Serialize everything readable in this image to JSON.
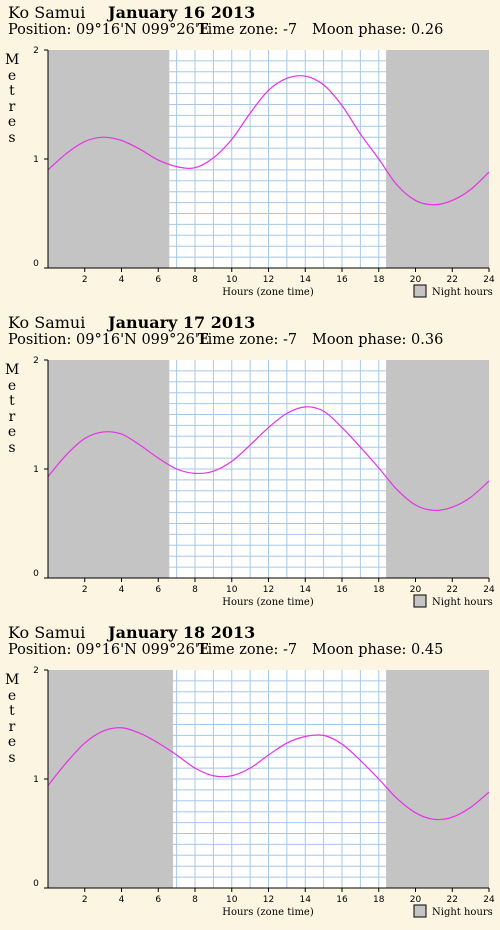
{
  "chart_data": [
    {
      "type": "line",
      "place": "Ko Samui",
      "date": "January 16 2013",
      "position_label": "Position: 09°16'N 099°26'E",
      "timezone_label": "Time zone: -7",
      "moon_label": "Moon phase: 0.26",
      "ylabel": "Metres",
      "xlabel": "Hours (zone time)",
      "legend": "Night hours",
      "x_ticks": [
        "2",
        "4",
        "6",
        "8",
        "10",
        "12",
        "14",
        "16",
        "18",
        "20",
        "22",
        "24"
      ],
      "y_ticks": [
        "0",
        "1",
        "2"
      ],
      "xlim": [
        0,
        24
      ],
      "ylim": [
        0,
        2
      ],
      "night_hours": [
        [
          0,
          6.6
        ],
        [
          18.4,
          24
        ]
      ],
      "grid": true,
      "colors": {
        "curve": "#e631e6",
        "night": "#c4c4c4",
        "grid": "#a6c8e8"
      },
      "series": [
        {
          "x": [
            0,
            1,
            2,
            3,
            4,
            5,
            6,
            7,
            8,
            9,
            10,
            11,
            12,
            13,
            14,
            15,
            16,
            17,
            18,
            19,
            20,
            21,
            22,
            23,
            24
          ],
          "y": [
            0.9,
            1.05,
            1.16,
            1.2,
            1.17,
            1.09,
            0.99,
            0.93,
            0.92,
            1.01,
            1.18,
            1.42,
            1.63,
            1.74,
            1.76,
            1.68,
            1.49,
            1.23,
            1.0,
            0.76,
            0.62,
            0.58,
            0.62,
            0.72,
            0.88
          ]
        }
      ]
    },
    {
      "type": "line",
      "place": "Ko Samui",
      "date": "January 17 2013",
      "position_label": "Position: 09°16'N 099°26'E",
      "timezone_label": "Time zone: -7",
      "moon_label": "Moon phase: 0.36",
      "ylabel": "Metres",
      "xlabel": "Hours (zone time)",
      "legend": "Night hours",
      "x_ticks": [
        "2",
        "4",
        "6",
        "8",
        "10",
        "12",
        "14",
        "16",
        "18",
        "20",
        "22",
        "24"
      ],
      "y_ticks": [
        "0",
        "1",
        "2"
      ],
      "xlim": [
        0,
        24
      ],
      "ylim": [
        0,
        2
      ],
      "night_hours": [
        [
          0,
          6.6
        ],
        [
          18.4,
          24
        ]
      ],
      "grid": true,
      "colors": {
        "curve": "#e631e6",
        "night": "#c4c4c4",
        "grid": "#a6c8e8"
      },
      "series": [
        {
          "x": [
            0,
            1,
            2,
            3,
            4,
            5,
            6,
            7,
            8,
            9,
            10,
            11,
            12,
            13,
            14,
            15,
            16,
            17,
            18,
            19,
            20,
            21,
            22,
            23,
            24
          ],
          "y": [
            0.93,
            1.13,
            1.28,
            1.34,
            1.32,
            1.22,
            1.1,
            1.0,
            0.96,
            0.98,
            1.07,
            1.22,
            1.38,
            1.51,
            1.57,
            1.53,
            1.38,
            1.2,
            1.01,
            0.81,
            0.67,
            0.62,
            0.65,
            0.74,
            0.89
          ]
        }
      ]
    },
    {
      "type": "line",
      "place": "Ko Samui",
      "date": "January 18 2013",
      "position_label": "Position: 09°16'N 099°26'E",
      "timezone_label": "Time zone: -7",
      "moon_label": "Moon phase: 0.45",
      "ylabel": "Metres",
      "xlabel": "Hours (zone time)",
      "legend": "Night hours",
      "x_ticks": [
        "2",
        "4",
        "6",
        "8",
        "10",
        "12",
        "14",
        "16",
        "18",
        "20",
        "22",
        "24"
      ],
      "y_ticks": [
        "0",
        "1",
        "2"
      ],
      "xlim": [
        0,
        24
      ],
      "ylim": [
        0,
        2
      ],
      "night_hours": [
        [
          0,
          6.8
        ],
        [
          18.4,
          24
        ]
      ],
      "grid": true,
      "colors": {
        "curve": "#e631e6",
        "night": "#c4c4c4",
        "grid": "#a6c8e8"
      },
      "series": [
        {
          "x": [
            0,
            1,
            2,
            3,
            4,
            5,
            6,
            7,
            8,
            9,
            10,
            11,
            12,
            13,
            14,
            15,
            16,
            17,
            18,
            19,
            20,
            21,
            22,
            23,
            24
          ],
          "y": [
            0.94,
            1.15,
            1.33,
            1.44,
            1.47,
            1.42,
            1.33,
            1.22,
            1.1,
            1.03,
            1.03,
            1.1,
            1.22,
            1.33,
            1.39,
            1.4,
            1.32,
            1.17,
            1.0,
            0.82,
            0.69,
            0.63,
            0.65,
            0.74,
            0.88
          ]
        }
      ]
    }
  ]
}
